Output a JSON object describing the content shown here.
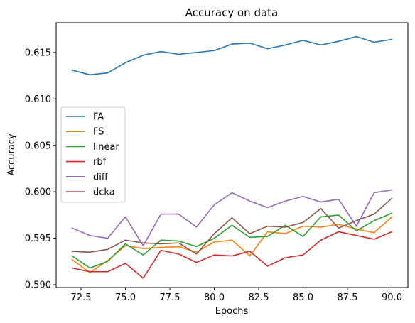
{
  "chart_data": {
    "type": "line",
    "title": "Accuracy on data",
    "xlabel": "Epochs",
    "ylabel": "Accuracy",
    "xlim": [
      71.1,
      90.9
    ],
    "ylim": [
      0.5897,
      0.6182
    ],
    "xticks": [
      72.5,
      75.0,
      77.5,
      80.0,
      82.5,
      85.0,
      87.5,
      90.0
    ],
    "xtick_labels": [
      "72.5",
      "75.0",
      "77.5",
      "80.0",
      "82.5",
      "85.0",
      "87.5",
      "90.0"
    ],
    "yticks": [
      0.59,
      0.595,
      0.6,
      0.605,
      0.61,
      0.615
    ],
    "ytick_labels": [
      "0.590",
      "0.595",
      "0.600",
      "0.605",
      "0.610",
      "0.615"
    ],
    "grid": false,
    "legend_position": "center-left",
    "x": [
      72,
      73,
      74,
      75,
      76,
      77,
      78,
      79,
      80,
      81,
      82,
      83,
      84,
      85,
      86,
      87,
      88,
      89,
      90
    ],
    "series": [
      {
        "name": "FA",
        "color": "#1f77b4",
        "values": [
          0.6131,
          0.6126,
          0.6128,
          0.6139,
          0.6147,
          0.6151,
          0.6148,
          0.615,
          0.6152,
          0.6159,
          0.616,
          0.6154,
          0.6158,
          0.6163,
          0.6158,
          0.6162,
          0.6167,
          0.6161,
          0.6164
        ]
      },
      {
        "name": "FS",
        "color": "#ff7f0e",
        "values": [
          0.5927,
          0.5913,
          0.5926,
          0.5942,
          0.5939,
          0.594,
          0.5941,
          0.5935,
          0.5946,
          0.5948,
          0.5931,
          0.5957,
          0.5955,
          0.5963,
          0.5962,
          0.5965,
          0.596,
          0.5956,
          0.5973
        ]
      },
      {
        "name": "linear",
        "color": "#2ca02c",
        "values": [
          0.5931,
          0.5918,
          0.5925,
          0.5944,
          0.5932,
          0.5948,
          0.5947,
          0.5941,
          0.595,
          0.5964,
          0.5951,
          0.5952,
          0.5964,
          0.5952,
          0.5973,
          0.5975,
          0.5958,
          0.5969,
          0.5977
        ]
      },
      {
        "name": "rbf",
        "color": "#d62728",
        "values": [
          0.5918,
          0.5914,
          0.5914,
          0.5923,
          0.5907,
          0.5937,
          0.5933,
          0.5924,
          0.5932,
          0.5931,
          0.5936,
          0.592,
          0.5929,
          0.5932,
          0.5948,
          0.5957,
          0.5953,
          0.5949,
          0.5957
        ]
      },
      {
        "name": "diff",
        "color": "#9467bd",
        "values": [
          0.5961,
          0.5953,
          0.595,
          0.5973,
          0.5942,
          0.5976,
          0.5976,
          0.5962,
          0.5986,
          0.5999,
          0.599,
          0.5983,
          0.599,
          0.5995,
          0.5989,
          0.5992,
          0.5963,
          0.5999,
          0.6002
        ]
      },
      {
        "name": "dcka",
        "color": "#8c564b",
        "values": [
          0.5936,
          0.5935,
          0.5938,
          0.5948,
          0.5945,
          0.5944,
          0.5945,
          0.5933,
          0.5955,
          0.5972,
          0.5955,
          0.5963,
          0.5962,
          0.5967,
          0.5982,
          0.5961,
          0.5969,
          0.5976,
          0.5993
        ]
      }
    ]
  }
}
